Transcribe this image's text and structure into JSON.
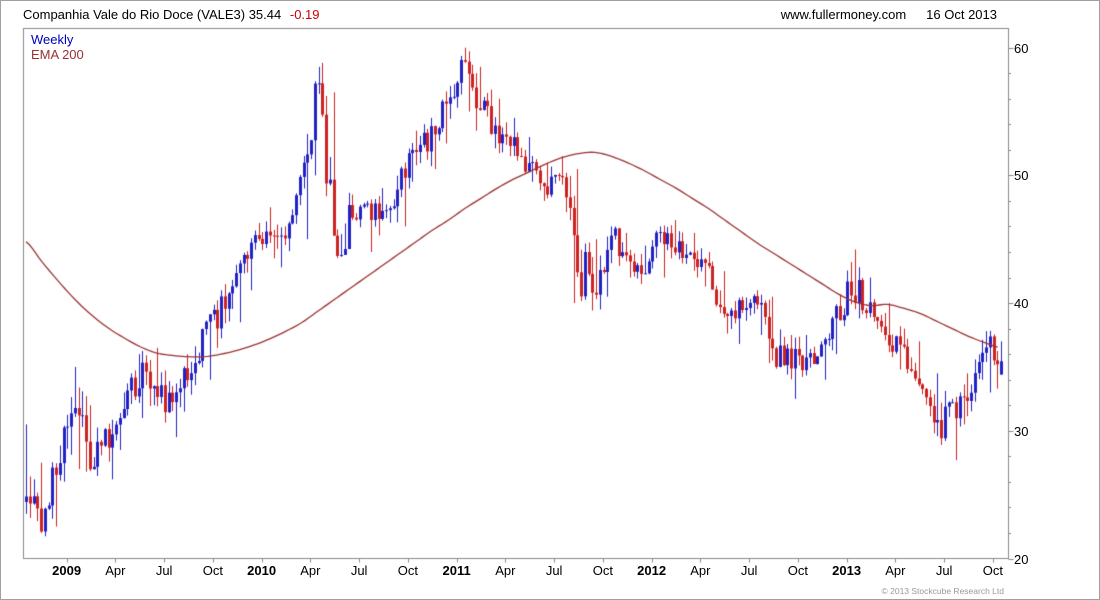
{
  "header": {
    "title": "Companhia Vale do Rio Doce (VALE3) 35.44",
    "change": "-0.19",
    "site": "www.fullermoney.com",
    "date": "16 Oct 2013"
  },
  "legend": {
    "line1": "Weekly",
    "line2": "EMA 200"
  },
  "footer": {
    "copyright": "© 2013 Stockcube Research Ltd"
  },
  "chart_data": {
    "type": "candlestick",
    "instrument": "Companhia Vale do Rio Doce (VALE3)",
    "interval": "Weekly",
    "overlay": "EMA 200",
    "last_close": 35.44,
    "change": -0.19,
    "x_range": [
      "Oct 2008",
      "Oct 2013"
    ],
    "ylim": [
      20,
      61.5
    ],
    "y_ticks": [
      20,
      30,
      40,
      50,
      60
    ],
    "y_minor_step": 2,
    "x_ticks": [
      {
        "label": "2009",
        "t": 2.5,
        "bold": true
      },
      {
        "label": "Apr",
        "t": 5.5
      },
      {
        "label": "Jul",
        "t": 8.5
      },
      {
        "label": "Oct",
        "t": 11.5
      },
      {
        "label": "2010",
        "t": 14.5,
        "bold": true
      },
      {
        "label": "Apr",
        "t": 17.5
      },
      {
        "label": "Jul",
        "t": 20.5
      },
      {
        "label": "Oct",
        "t": 23.5
      },
      {
        "label": "2011",
        "t": 26.5,
        "bold": true
      },
      {
        "label": "Apr",
        "t": 29.5
      },
      {
        "label": "Jul",
        "t": 32.5
      },
      {
        "label": "Oct",
        "t": 35.5
      },
      {
        "label": "2012",
        "t": 38.5,
        "bold": true
      },
      {
        "label": "Apr",
        "t": 41.5
      },
      {
        "label": "Jul",
        "t": 44.5
      },
      {
        "label": "Oct",
        "t": 47.5
      },
      {
        "label": "2013",
        "t": 50.5,
        "bold": true
      },
      {
        "label": "Apr",
        "t": 53.5
      },
      {
        "label": "Jul",
        "t": 56.5
      },
      {
        "label": "Oct",
        "t": 59.5
      }
    ],
    "colors": {
      "up": "#2222c4",
      "down": "#cc2222",
      "ema": "#993333",
      "frame": "#888888",
      "text": "#000000",
      "change_text": "#cc0000",
      "copyright_text": "#999999"
    },
    "monthly_hlc_fields": [
      "high",
      "low",
      "close"
    ],
    "monthly_hlc": [
      [
        30.5,
        23.5,
        26.0
      ],
      [
        27.5,
        21.8,
        23.5
      ],
      [
        28.5,
        22.5,
        27.5
      ],
      [
        35.0,
        27.0,
        30.5
      ],
      [
        32.0,
        26.8,
        28.0
      ],
      [
        30.5,
        26.2,
        29.5
      ],
      [
        33.0,
        28.5,
        31.5
      ],
      [
        36.0,
        31.0,
        34.5
      ],
      [
        36.5,
        32.0,
        33.0
      ],
      [
        33.5,
        29.5,
        32.5
      ],
      [
        36.0,
        31.5,
        35.0
      ],
      [
        38.5,
        34.0,
        37.5
      ],
      [
        41.0,
        36.5,
        39.5
      ],
      [
        43.0,
        38.5,
        42.0
      ],
      [
        45.5,
        41.0,
        44.5
      ],
      [
        47.5,
        43.5,
        45.0
      ],
      [
        46.0,
        42.8,
        45.5
      ],
      [
        51.0,
        45.0,
        50.5
      ],
      [
        58.5,
        50.0,
        55.5
      ],
      [
        56.5,
        43.8,
        45.5
      ],
      [
        48.5,
        44.5,
        47.0
      ],
      [
        48.0,
        44.0,
        47.5
      ],
      [
        49.0,
        45.3,
        46.5
      ],
      [
        50.5,
        46.0,
        50.0
      ],
      [
        53.5,
        49.5,
        52.5
      ],
      [
        54.5,
        50.5,
        53.0
      ],
      [
        57.0,
        52.5,
        56.5
      ],
      [
        60.0,
        55.0,
        58.0
      ],
      [
        58.5,
        53.5,
        55.0
      ],
      [
        56.0,
        51.8,
        53.5
      ],
      [
        54.5,
        51.5,
        52.5
      ],
      [
        53.0,
        49.5,
        50.5
      ],
      [
        51.0,
        48.0,
        49.0
      ],
      [
        51.5,
        48.5,
        50.0
      ],
      [
        50.5,
        40.0,
        43.0
      ],
      [
        45.0,
        39.5,
        41.5
      ],
      [
        46.0,
        40.5,
        45.0
      ],
      [
        45.5,
        42.0,
        43.5
      ],
      [
        44.5,
        41.5,
        42.5
      ],
      [
        46.0,
        42.0,
        45.5
      ],
      [
        46.5,
        43.5,
        44.5
      ],
      [
        45.5,
        42.0,
        43.0
      ],
      [
        44.0,
        41.3,
        42.5
      ],
      [
        42.5,
        37.8,
        38.5
      ],
      [
        40.5,
        36.8,
        39.5
      ],
      [
        41.0,
        37.5,
        40.0
      ],
      [
        40.5,
        35.3,
        36.0
      ],
      [
        37.5,
        32.5,
        36.0
      ],
      [
        37.5,
        34.3,
        35.5
      ],
      [
        37.0,
        34.0,
        36.5
      ],
      [
        40.5,
        36.0,
        39.5
      ],
      [
        44.2,
        38.8,
        41.0
      ],
      [
        42.0,
        38.8,
        39.5
      ],
      [
        40.0,
        36.3,
        37.5
      ],
      [
        38.0,
        34.8,
        36.0
      ],
      [
        37.0,
        33.3,
        34.0
      ],
      [
        34.5,
        29.8,
        30.5
      ],
      [
        32.5,
        27.7,
        31.5
      ],
      [
        34.5,
        30.5,
        33.5
      ],
      [
        37.8,
        33.0,
        36.5
      ],
      [
        37.0,
        33.3,
        35.44
      ]
    ],
    "ema_monthly": [
      44.8,
      43.2,
      41.7,
      40.3,
      39.1,
      38.1,
      37.3,
      36.6,
      36.1,
      35.9,
      35.8,
      35.8,
      36.0,
      36.3,
      36.7,
      37.2,
      37.8,
      38.5,
      39.4,
      40.3,
      41.2,
      42.1,
      43.0,
      43.9,
      44.8,
      45.7,
      46.5,
      47.4,
      48.2,
      49.0,
      49.7,
      50.3,
      50.9,
      51.4,
      51.7,
      51.8,
      51.5,
      51.0,
      50.4,
      49.7,
      49.0,
      48.2,
      47.4,
      46.5,
      45.6,
      44.7,
      43.9,
      43.1,
      42.3,
      41.5,
      40.7,
      40.1,
      39.8,
      39.9,
      39.6,
      39.2,
      38.6,
      38.0,
      37.4,
      36.9,
      36.5
    ]
  }
}
